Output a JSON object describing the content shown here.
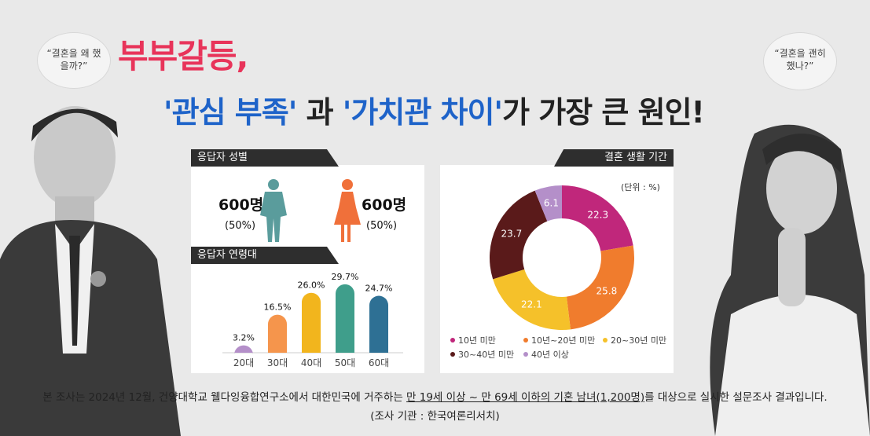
{
  "title": {
    "line1": "부부갈등,",
    "q1": "'관심 부족'",
    "mid": " 과 ",
    "q2": "'가치관 차이'",
    "tail": "가 가장 큰 원인!"
  },
  "bubbles": {
    "left": "“결혼을 왜 했을까?”",
    "right": "“결혼을 괜히 했나?”"
  },
  "gender": {
    "header": "응답자 성별",
    "male_count": "600명",
    "male_pct": "(50%)",
    "female_count": "600명",
    "female_pct": "(50%)",
    "male_color": "#5a9c9c",
    "female_color": "#f0703a"
  },
  "age_header": "응답자 연령대",
  "duration": {
    "header": "결혼 생활 기간",
    "unit": "(단위 : %)"
  },
  "chart_data": [
    {
      "type": "bar",
      "title": "응답자 연령대",
      "categories": [
        "20대",
        "30대",
        "40대",
        "50대",
        "60대"
      ],
      "values": [
        3.2,
        16.5,
        26.0,
        29.7,
        24.7
      ],
      "labels": [
        "3.2%",
        "16.5%",
        "26.0%",
        "29.7%",
        "24.7%"
      ],
      "colors": [
        "#b48fc9",
        "#f5954c",
        "#f2b51d",
        "#3f9e8b",
        "#2e7094"
      ],
      "ylim": [
        0,
        30
      ]
    },
    {
      "type": "pie",
      "title": "결혼 생활 기간",
      "categories": [
        "10년 미만",
        "10년~20년 미만",
        "20~30년 미만",
        "30~40년 미만",
        "40년 이상"
      ],
      "values": [
        22.3,
        25.8,
        22.1,
        23.7,
        6.1
      ],
      "labels": [
        "22.3",
        "25.8",
        "22.1",
        "23.7",
        "6.1"
      ],
      "colors": [
        "#c0277b",
        "#f07c2d",
        "#f5c12a",
        "#5a1a1a",
        "#b48fc9"
      ]
    }
  ],
  "footer": {
    "pre": "본 조사는 2024년 12월, 건양대학교 웰다잉융합연구소에서 대한민국에 거주하는 ",
    "underline": "만 19세 이상 ~ 만 69세 이하의 기혼 남녀(1,200명)",
    "post": "를 대상으로 실시한 설문조사 결과입니다.",
    "source": "(조사 기관 : 한국여론리서치)"
  }
}
